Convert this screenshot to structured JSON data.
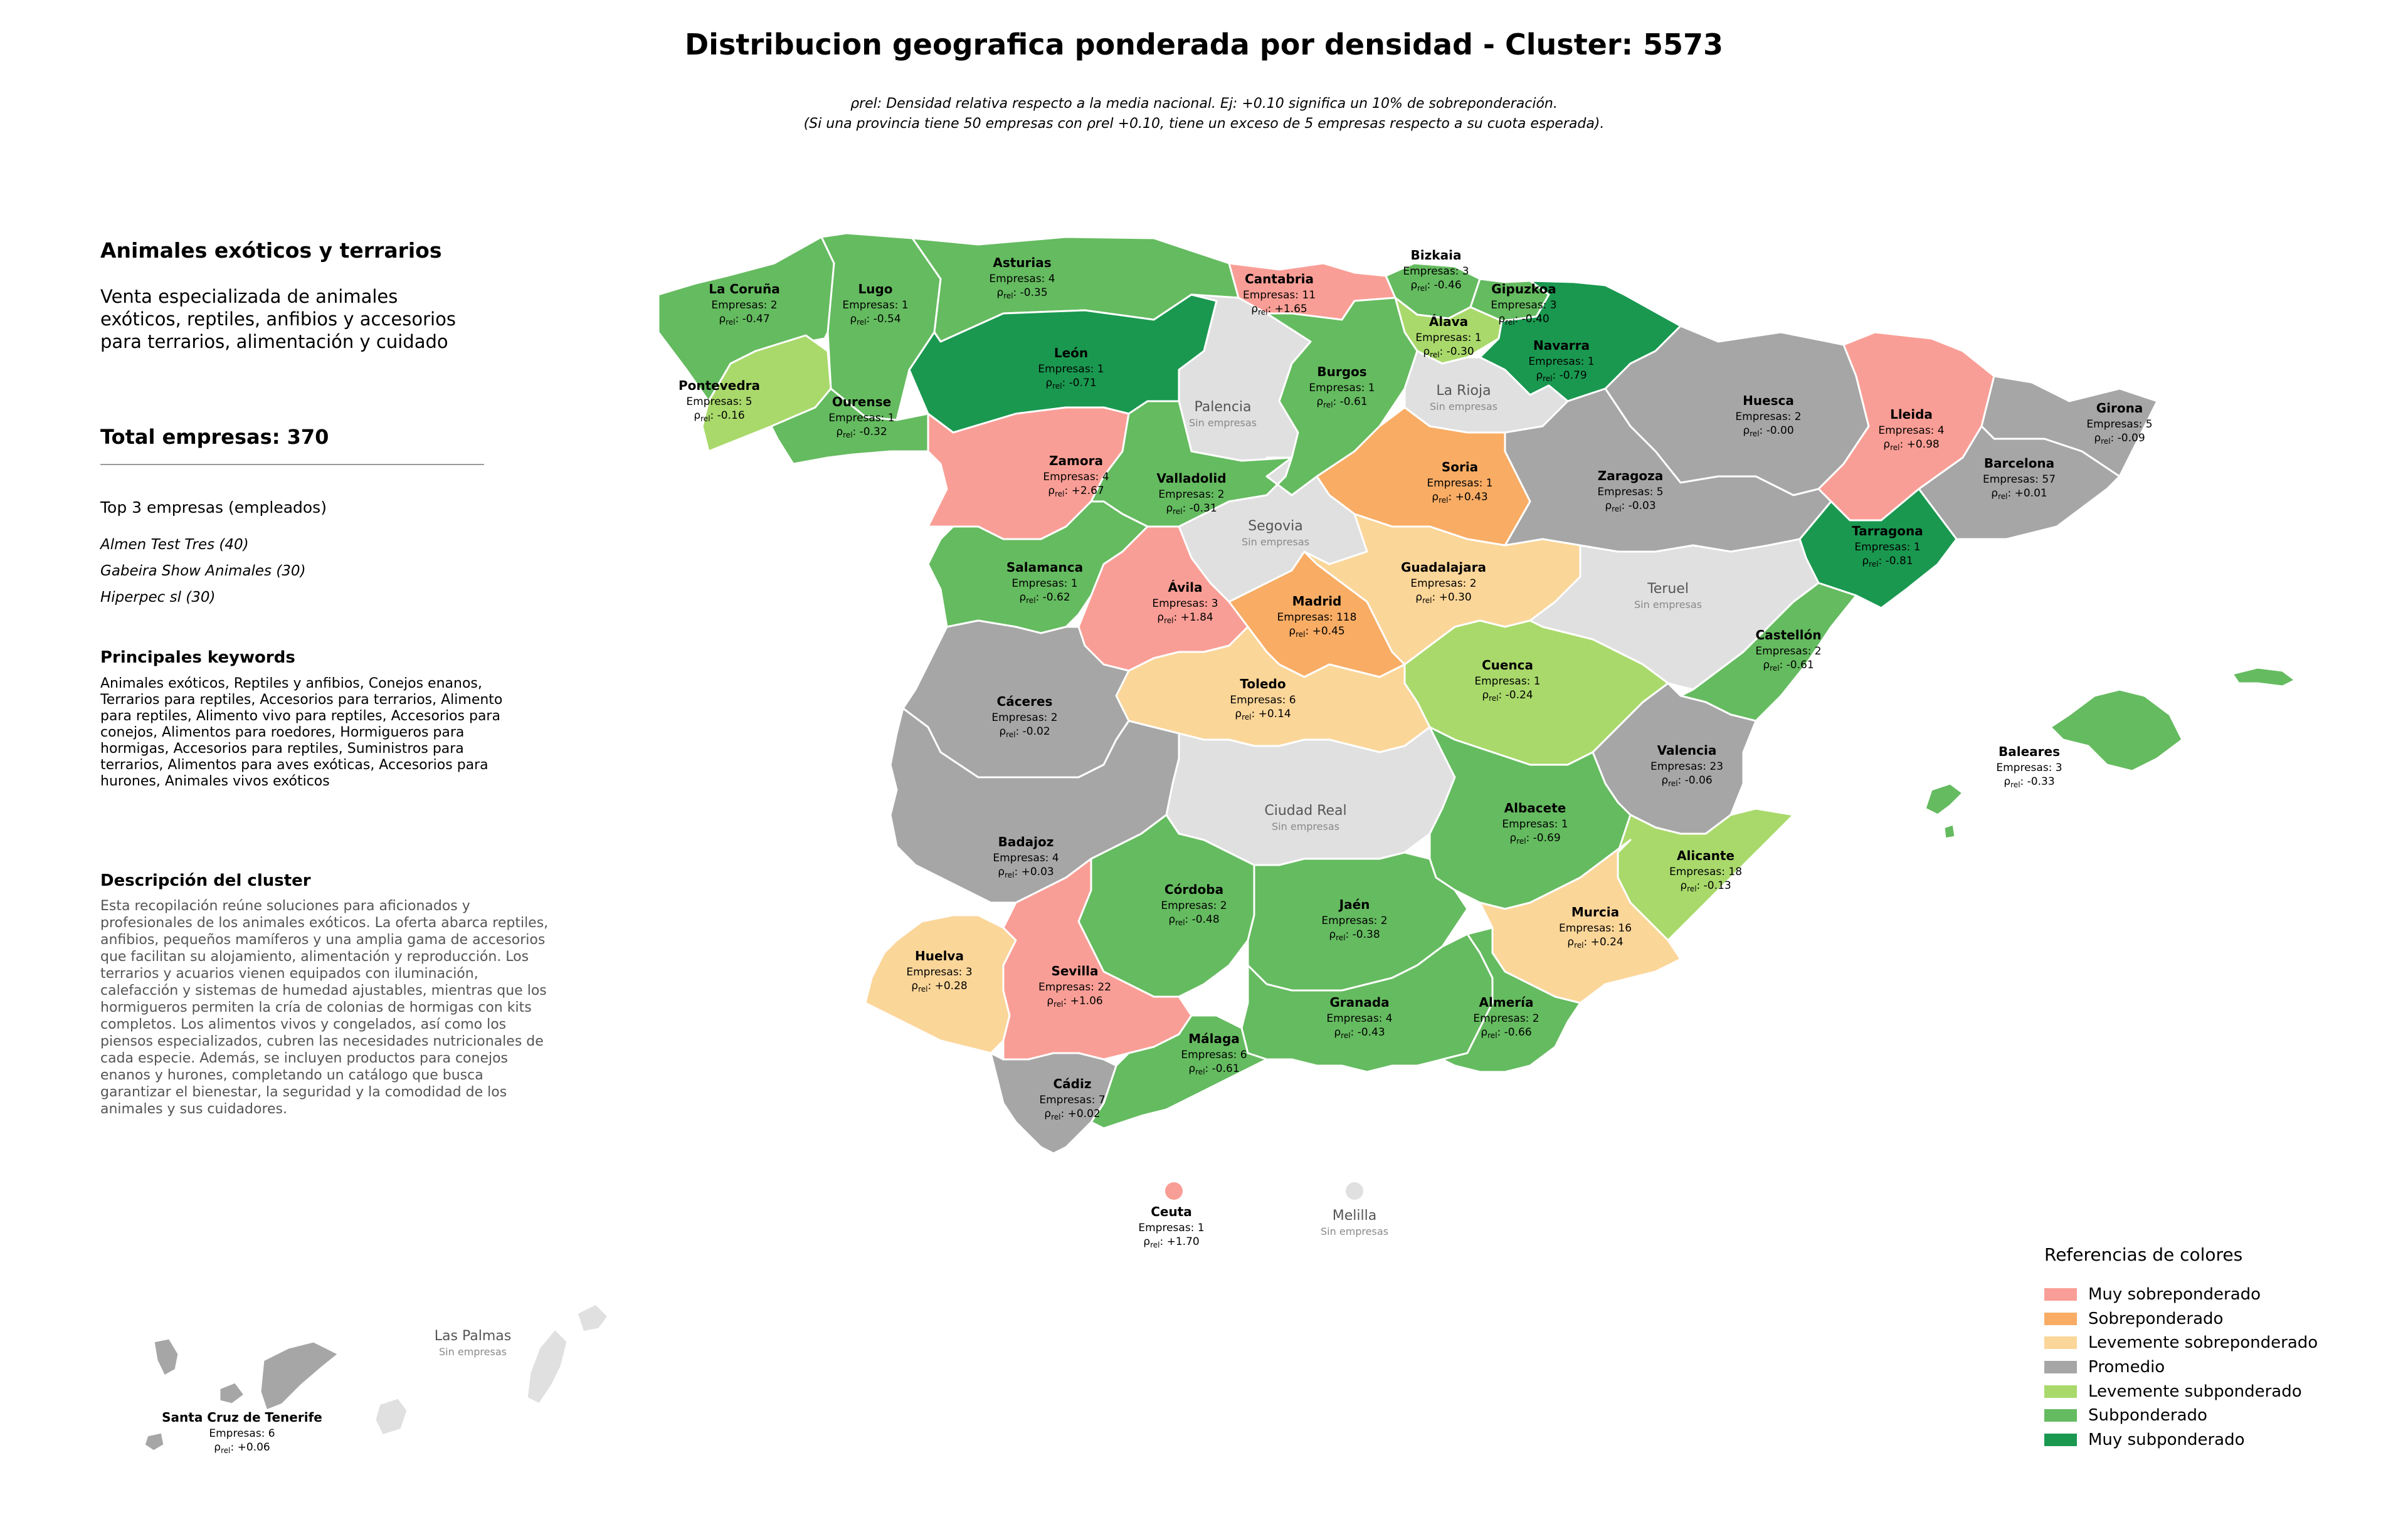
{
  "title": "Distribucion geografica ponderada por densidad - Cluster: 5573",
  "note": {
    "line1": "ρrel: Densidad relativa respecto a la media nacional. Ej: +0.10 significa un 10% de sobreponderación.",
    "line2": "(Si una provincia tiene 50 empresas con ρrel +0.10, tiene un exceso de 5 empresas respecto a su cuota esperada)."
  },
  "sidebar": {
    "title": "Animales exóticos y terrarios",
    "subtitle": "Venta especializada de animales exóticos, reptiles, anfibios y accesorios para terrarios, alimentación y cuidado",
    "total": "Total empresas: 370",
    "top_heading": "Top 3 empresas (empleados)",
    "top_companies": [
      "Almen Test Tres (40)",
      "Gabeira Show Animales (30)",
      "Hiperpec sl (30)"
    ],
    "keywords_heading": "Principales keywords",
    "keywords": "Animales exóticos, Reptiles y anfibios, Conejos enanos, Terrarios para reptiles, Accesorios para terrarios, Alimento para reptiles, Alimento vivo para reptiles, Accesorios para conejos, Alimentos para roedores, Hormigueros para hormigas, Accesorios para reptiles, Suministros para terrarios, Alimentos para aves exóticas, Accesorios para hurones, Animales vivos exóticos",
    "description_heading": "Descripción del cluster",
    "description": "Esta recopilación reúne soluciones para aficionados y profesionales de los animales exóticos. La oferta abarca reptiles, anfibios, pequeños mamíferos y una amplia gama de accesorios que facilitan su alojamiento, alimentación y reproducción. Los terrarios y acuarios vienen equipados con iluminación, calefacción y sistemas de humedad ajustables, mientras que los hormigueros permiten la cría de colonias de hormigas con kits completos. Los alimentos vivos y congelados, así como los piensos especializados, cubren las necesidades nutricionales de cada especie. Además, se incluyen productos para conejos enanos y hurones, completando un catálogo que busca garantizar el bienestar, la seguridad y la comodidad de los animales y sus cuidadores."
  },
  "legend": {
    "title": "Referencias de colores",
    "items": [
      {
        "label": "Muy sobreponderado",
        "color": "#f99e96"
      },
      {
        "label": "Sobreponderado",
        "color": "#f8ac64"
      },
      {
        "label": "Levemente sobreponderado",
        "color": "#fbd699"
      },
      {
        "label": "Promedio",
        "color": "#a6a6a6"
      },
      {
        "label": "Levemente subponderado",
        "color": "#a9d96b"
      },
      {
        "label": "Subponderado",
        "color": "#65bb60"
      },
      {
        "label": "Muy subponderado",
        "color": "#1a9850"
      }
    ]
  },
  "colors": {
    "no_data": "#e0e0e0",
    "border": "#ffffff"
  },
  "map_labels": {
    "empresas_prefix": "Empresas: ",
    "rho_prefix": "ρrel: ",
    "no_data": "Sin empresas"
  },
  "provinces": [
    {
      "name": "La Coruña",
      "empresas": 2,
      "rho": "-0.47",
      "level": "Subponderado"
    },
    {
      "name": "Lugo",
      "empresas": 1,
      "rho": "-0.54",
      "level": "Subponderado"
    },
    {
      "name": "Asturias",
      "empresas": 4,
      "rho": "-0.35",
      "level": "Subponderado"
    },
    {
      "name": "Cantabria",
      "empresas": 11,
      "rho": "+1.65",
      "level": "Muy sobreponderado"
    },
    {
      "name": "Bizkaia",
      "empresas": 3,
      "rho": "-0.46",
      "level": "Subponderado"
    },
    {
      "name": "Gipuzkoa",
      "empresas": 3,
      "rho": "-0.40",
      "level": "Subponderado"
    },
    {
      "name": "Álava",
      "empresas": 1,
      "rho": "-0.30",
      "level": "Levemente subponderado"
    },
    {
      "name": "Navarra",
      "empresas": 1,
      "rho": "-0.79",
      "level": "Muy subponderado"
    },
    {
      "name": "Pontevedra",
      "empresas": 5,
      "rho": "-0.16",
      "level": "Levemente subponderado"
    },
    {
      "name": "Ourense",
      "empresas": 1,
      "rho": "-0.32",
      "level": "Subponderado"
    },
    {
      "name": "León",
      "empresas": 1,
      "rho": "-0.71",
      "level": "Muy subponderado"
    },
    {
      "name": "Palencia",
      "empresas": null,
      "rho": null,
      "level": "none"
    },
    {
      "name": "Burgos",
      "empresas": 1,
      "rho": "-0.61",
      "level": "Subponderado"
    },
    {
      "name": "La Rioja",
      "empresas": null,
      "rho": null,
      "level": "none"
    },
    {
      "name": "Huesca",
      "empresas": 2,
      "rho": "-0.00",
      "level": "Promedio"
    },
    {
      "name": "Lleida",
      "empresas": 4,
      "rho": "+0.98",
      "level": "Muy sobreponderado"
    },
    {
      "name": "Girona",
      "empresas": 5,
      "rho": "-0.09",
      "level": "Promedio"
    },
    {
      "name": "Barcelona",
      "empresas": 57,
      "rho": "+0.01",
      "level": "Promedio"
    },
    {
      "name": "Tarragona",
      "empresas": 1,
      "rho": "-0.81",
      "level": "Muy subponderado"
    },
    {
      "name": "Zaragoza",
      "empresas": 5,
      "rho": "-0.03",
      "level": "Promedio"
    },
    {
      "name": "Soria",
      "empresas": 1,
      "rho": "+0.43",
      "level": "Sobreponderado"
    },
    {
      "name": "Zamora",
      "empresas": 4,
      "rho": "+2.67",
      "level": "Muy sobreponderado"
    },
    {
      "name": "Valladolid",
      "empresas": 2,
      "rho": "-0.31",
      "level": "Subponderado"
    },
    {
      "name": "Segovia",
      "empresas": null,
      "rho": null,
      "level": "none"
    },
    {
      "name": "Salamanca",
      "empresas": 1,
      "rho": "-0.62",
      "level": "Subponderado"
    },
    {
      "name": "Ávila",
      "empresas": 3,
      "rho": "+1.84",
      "level": "Muy sobreponderado"
    },
    {
      "name": "Madrid",
      "empresas": 118,
      "rho": "+0.45",
      "level": "Sobreponderado"
    },
    {
      "name": "Guadalajara",
      "empresas": 2,
      "rho": "+0.30",
      "level": "Levemente sobreponderado"
    },
    {
      "name": "Teruel",
      "empresas": null,
      "rho": null,
      "level": "none"
    },
    {
      "name": "Castellón",
      "empresas": 2,
      "rho": "-0.61",
      "level": "Subponderado"
    },
    {
      "name": "Cuenca",
      "empresas": 1,
      "rho": "-0.24",
      "level": "Levemente subponderado"
    },
    {
      "name": "Toledo",
      "empresas": 6,
      "rho": "+0.14",
      "level": "Levemente sobreponderado"
    },
    {
      "name": "Cáceres",
      "empresas": 2,
      "rho": "-0.02",
      "level": "Promedio"
    },
    {
      "name": "Valencia",
      "empresas": 23,
      "rho": "-0.06",
      "level": "Promedio"
    },
    {
      "name": "Ciudad Real",
      "empresas": null,
      "rho": null,
      "level": "none"
    },
    {
      "name": "Badajoz",
      "empresas": 4,
      "rho": "+0.03",
      "level": "Promedio"
    },
    {
      "name": "Albacete",
      "empresas": 1,
      "rho": "-0.69",
      "level": "Subponderado"
    },
    {
      "name": "Alicante",
      "empresas": 18,
      "rho": "-0.13",
      "level": "Levemente subponderado"
    },
    {
      "name": "Córdoba",
      "empresas": 2,
      "rho": "-0.48",
      "level": "Subponderado"
    },
    {
      "name": "Jaén",
      "empresas": 2,
      "rho": "-0.38",
      "level": "Subponderado"
    },
    {
      "name": "Murcia",
      "empresas": 16,
      "rho": "+0.24",
      "level": "Levemente sobreponderado"
    },
    {
      "name": "Huelva",
      "empresas": 3,
      "rho": "+0.28",
      "level": "Levemente sobreponderado"
    },
    {
      "name": "Sevilla",
      "empresas": 22,
      "rho": "+1.06",
      "level": "Muy sobreponderado"
    },
    {
      "name": "Granada",
      "empresas": 4,
      "rho": "-0.43",
      "level": "Subponderado"
    },
    {
      "name": "Almería",
      "empresas": 2,
      "rho": "-0.66",
      "level": "Subponderado"
    },
    {
      "name": "Málaga",
      "empresas": 6,
      "rho": "-0.61",
      "level": "Subponderado"
    },
    {
      "name": "Cádiz",
      "empresas": 7,
      "rho": "+0.02",
      "level": "Promedio"
    },
    {
      "name": "Baleares",
      "empresas": 3,
      "rho": "-0.33",
      "level": "Subponderado"
    },
    {
      "name": "Ceuta",
      "empresas": 1,
      "rho": "+1.70",
      "level": "Muy sobreponderado"
    },
    {
      "name": "Melilla",
      "empresas": null,
      "rho": null,
      "level": "none"
    },
    {
      "name": "Las Palmas",
      "empresas": null,
      "rho": null,
      "level": "none"
    },
    {
      "name": "Santa Cruz de Tenerife",
      "empresas": 6,
      "rho": "+0.06",
      "level": "Promedio"
    }
  ]
}
